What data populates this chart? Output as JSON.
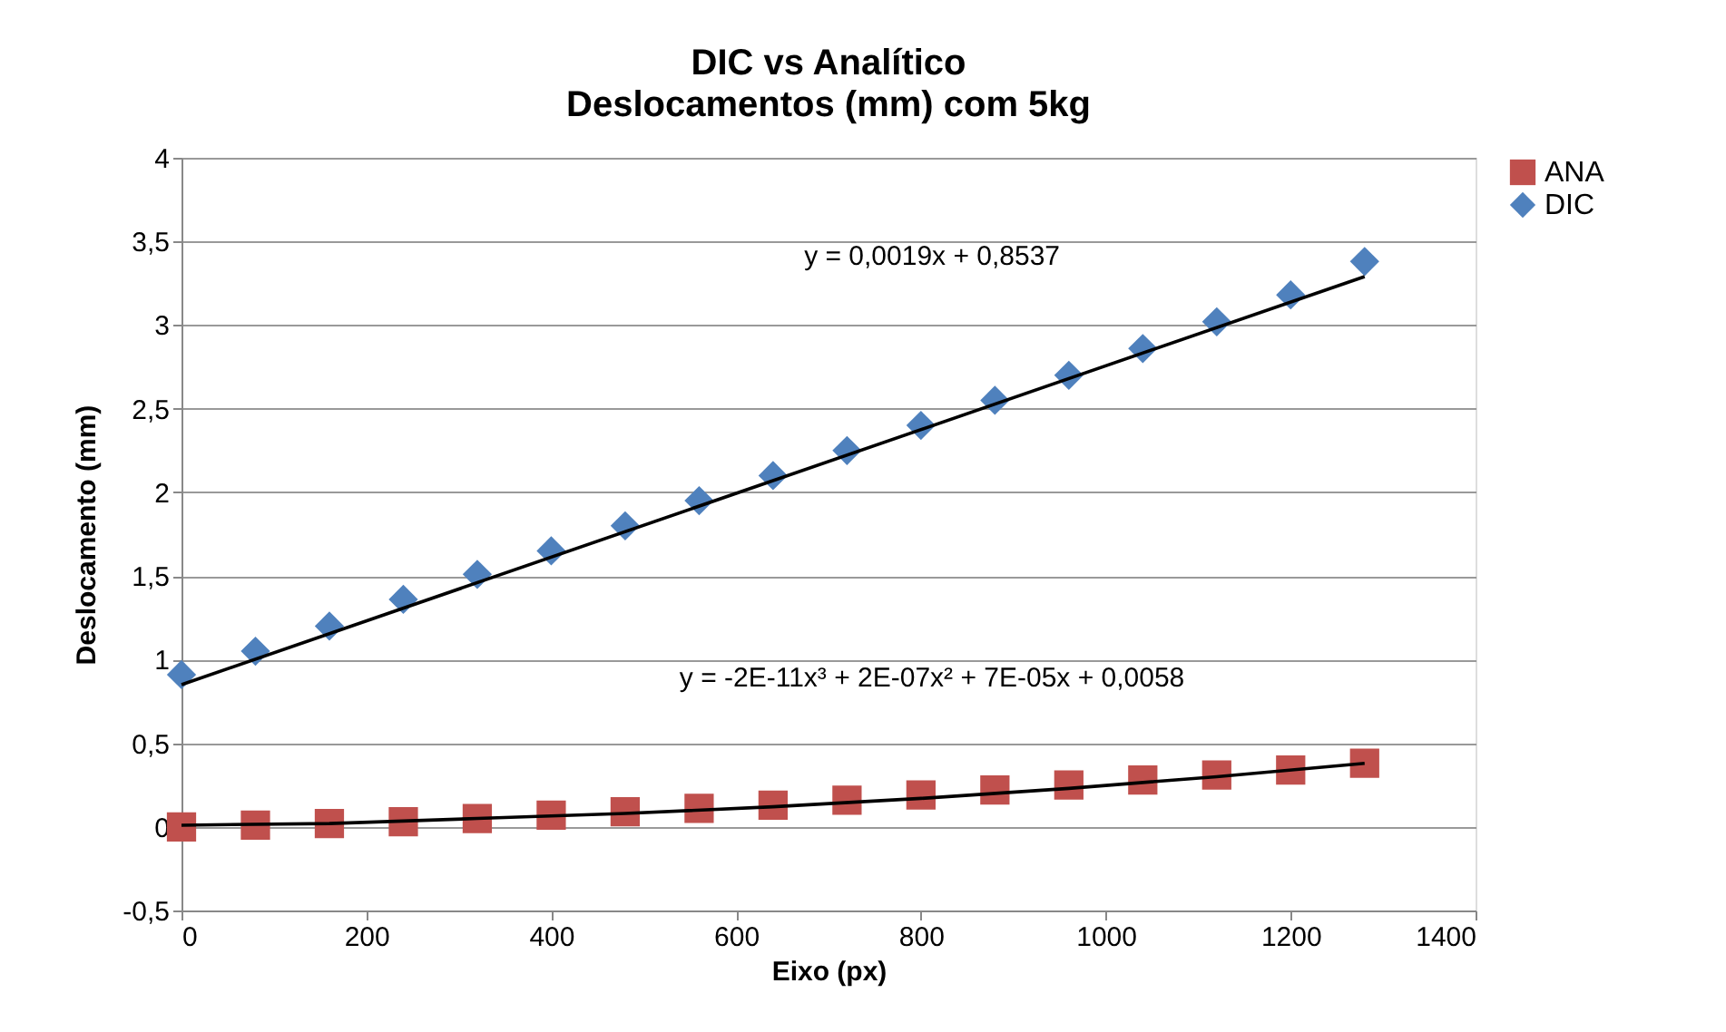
{
  "chart_data": {
    "type": "scatter",
    "title": "DIC vs Analítico",
    "subtitle": "Deslocamentos (mm) com 5kg",
    "xlabel": "Eixo (px)",
    "ylabel": "Deslocamento (mm)",
    "xlim": [
      0,
      1400
    ],
    "xticks": [
      0,
      200,
      400,
      600,
      800,
      1000,
      1200,
      1400
    ],
    "ylim": [
      -0.5,
      4
    ],
    "yticks": [
      {
        "value": -0.5,
        "label": "-0,5"
      },
      0,
      {
        "value": 0.5,
        "label": "0,5"
      },
      1,
      {
        "value": 1.5,
        "label": "1,5"
      },
      2,
      {
        "value": 2.5,
        "label": "2,5"
      },
      3,
      {
        "value": 3.5,
        "label": "3,5"
      },
      4
    ],
    "grid": "y",
    "legend": "right",
    "annotations": [
      "y = 0,0019x + 0,8537",
      "y = -2E-11x³ + 2E-07x² + 7E-05x + 0,0058"
    ],
    "series": [
      {
        "name": "ANA",
        "color": "#c0504d",
        "marker": "square",
        "x": [
          0,
          80,
          160,
          240,
          320,
          400,
          480,
          560,
          640,
          720,
          800,
          880,
          960,
          1040,
          1120,
          1200,
          1280
        ],
        "values": [
          0.0,
          0.01,
          0.02,
          0.03,
          0.05,
          0.07,
          0.09,
          0.11,
          0.13,
          0.16,
          0.19,
          0.22,
          0.25,
          0.28,
          0.31,
          0.34,
          0.38
        ]
      },
      {
        "name": "DIC",
        "color": "#4f81bd",
        "marker": "diamond",
        "x": [
          0,
          80,
          160,
          240,
          320,
          400,
          480,
          560,
          640,
          720,
          800,
          880,
          960,
          1040,
          1120,
          1200,
          1280
        ],
        "values": [
          0.91,
          1.05,
          1.2,
          1.36,
          1.51,
          1.65,
          1.8,
          1.95,
          2.1,
          2.25,
          2.4,
          2.55,
          2.7,
          2.86,
          3.02,
          3.18,
          3.38
        ]
      },
      {
        "type": "line",
        "color": "#000000",
        "x": [
          0,
          1280
        ],
        "values": [
          0.85,
          3.29
        ]
      },
      {
        "type": "line",
        "color": "#000000",
        "x": [
          0,
          160,
          320,
          480,
          640,
          800,
          960,
          1120,
          1280
        ],
        "values": [
          0.01,
          0.02,
          0.05,
          0.08,
          0.12,
          0.17,
          0.23,
          0.3,
          0.38
        ]
      }
    ]
  }
}
